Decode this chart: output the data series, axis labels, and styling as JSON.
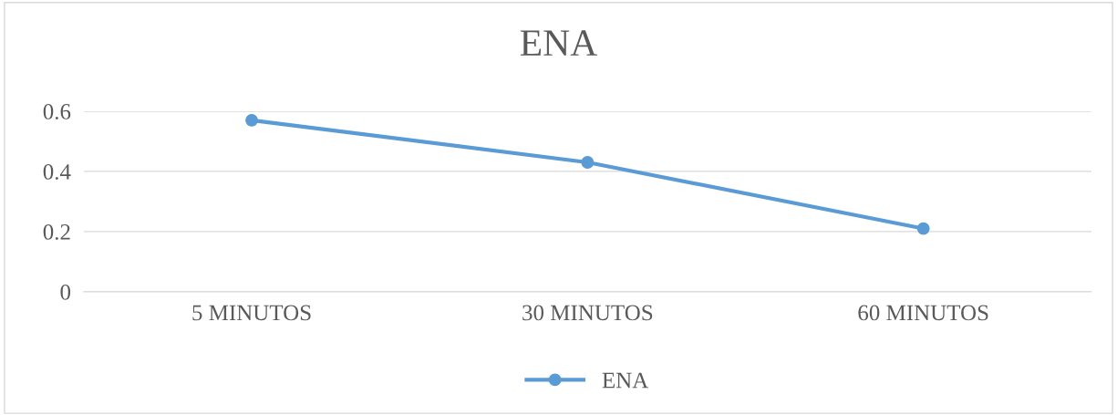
{
  "chart_data": {
    "type": "line",
    "title": "ENA",
    "categories": [
      "5 MINUTOS",
      "30 MINUTOS",
      "60 MINUTOS"
    ],
    "series": [
      {
        "name": "ENA",
        "color": "#5b9bd5",
        "values": [
          0.57,
          0.43,
          0.21
        ]
      }
    ],
    "ylim": [
      0,
      0.6
    ],
    "yticks": [
      0,
      0.2,
      0.4,
      0.6
    ],
    "grid": "y",
    "legend": "bottom",
    "marker": "circle",
    "line_style": "solid"
  }
}
